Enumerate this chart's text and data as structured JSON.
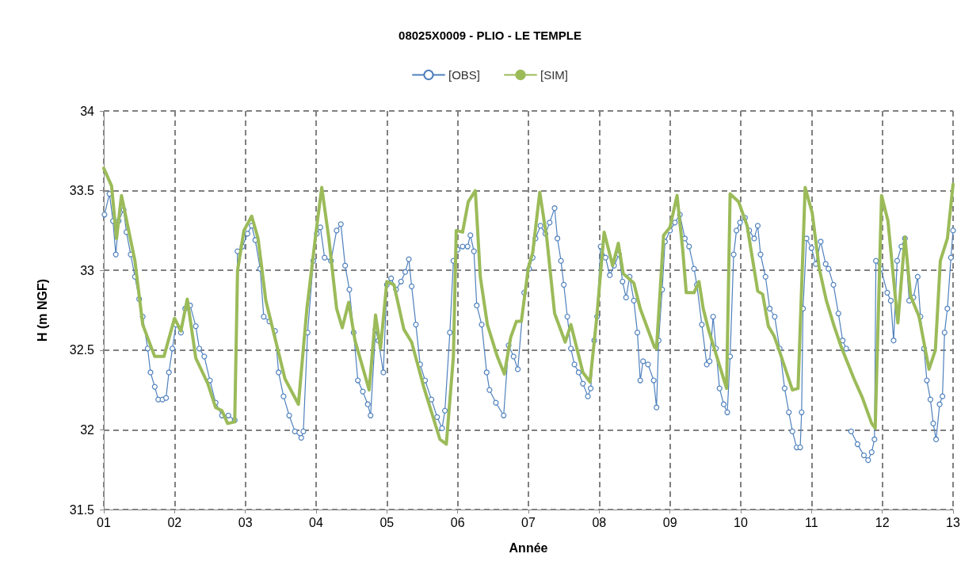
{
  "chart_data": {
    "type": "line",
    "title": "08025X0009 - PLIO - LE TEMPLE",
    "xlabel": "Année",
    "ylabel": "H (m NGF)",
    "xlim": [
      1,
      13
    ],
    "xticks": [
      {
        "value": 1,
        "label": "01"
      },
      {
        "value": 2,
        "label": "02"
      },
      {
        "value": 3,
        "label": "03"
      },
      {
        "value": 4,
        "label": "04"
      },
      {
        "value": 5,
        "label": "05"
      },
      {
        "value": 6,
        "label": "06"
      },
      {
        "value": 7,
        "label": "07"
      },
      {
        "value": 8,
        "label": "08"
      },
      {
        "value": 9,
        "label": "09"
      },
      {
        "value": 10,
        "label": "10"
      },
      {
        "value": 11,
        "label": "11"
      },
      {
        "value": 12,
        "label": "12"
      },
      {
        "value": 13,
        "label": "13"
      }
    ],
    "ylim": [
      31.5,
      34
    ],
    "yticks": [
      31.5,
      32,
      32.5,
      33,
      33.5,
      34
    ],
    "grid": true,
    "legend": "top",
    "series": [
      {
        "name": "[OBS]",
        "color": "#4f81bd",
        "marker": "circle",
        "x": [
          1.01,
          1.08,
          1.13,
          1.17,
          1.21,
          1.28,
          1.32,
          1.38,
          1.44,
          1.5,
          1.55,
          1.62,
          1.66,
          1.72,
          1.77,
          1.83,
          1.88,
          1.92,
          1.97,
          2.02,
          2.09,
          2.15,
          2.22,
          2.3,
          2.35,
          2.42,
          2.5,
          2.58,
          2.67,
          2.76,
          2.85,
          2.89,
          2.96,
          3.03,
          3.09,
          3.14,
          3.21,
          3.26,
          3.34,
          3.42,
          3.47,
          3.54,
          3.62,
          3.7,
          3.79,
          3.82,
          3.88,
          3.96,
          4.01,
          4.06,
          4.12,
          4.21,
          4.29,
          4.35,
          4.41,
          4.47,
          4.53,
          4.59,
          4.66,
          4.73,
          4.77,
          4.84,
          4.88,
          4.95,
          5.0,
          5.06,
          5.13,
          5.2,
          5.26,
          5.31,
          5.35,
          5.41,
          5.47,
          5.54,
          5.63,
          5.71,
          5.78,
          5.82,
          5.89,
          5.94,
          6.0,
          6.07,
          6.14,
          6.18,
          6.23,
          6.27,
          6.34,
          6.41,
          6.45,
          6.54,
          6.65,
          6.72,
          6.79,
          6.85,
          6.94,
          7.01,
          7.06,
          7.1,
          7.17,
          7.24,
          7.3,
          7.37,
          7.41,
          7.46,
          7.5,
          7.55,
          7.6,
          7.65,
          7.71,
          7.77,
          7.84,
          7.88,
          7.93,
          7.97,
          8.02,
          8.09,
          8.15,
          8.21,
          8.28,
          8.33,
          8.38,
          8.43,
          8.49,
          8.54,
          8.58,
          8.62,
          8.69,
          8.77,
          8.81,
          8.84,
          8.89,
          8.93,
          9.0,
          9.07,
          9.14,
          9.21,
          9.27,
          9.34,
          9.38,
          9.45,
          9.52,
          9.56,
          9.61,
          9.65,
          9.7,
          9.76,
          9.81,
          9.85,
          9.9,
          9.94,
          9.99,
          10.06,
          10.12,
          10.19,
          10.24,
          10.28,
          10.35,
          10.41,
          10.48,
          10.55,
          10.62,
          10.68,
          10.73,
          10.79,
          10.84,
          10.86,
          10.88,
          10.93,
          11.0,
          11.06,
          11.13,
          11.2,
          11.24,
          11.31,
          11.38,
          11.44,
          11.49,
          11.52,
          11.56,
          11.65,
          11.74,
          11.8,
          11.85,
          11.89,
          11.91,
          11.98,
          12.07,
          12.12,
          12.16,
          12.21,
          12.27,
          12.32,
          12.38,
          12.44,
          12.5,
          12.54,
          12.59,
          12.63,
          12.68,
          12.72,
          12.76,
          12.81,
          12.85,
          12.88,
          12.92,
          12.97,
          13.0
        ],
        "values": [
          33.35,
          33.48,
          33.31,
          33.1,
          33.31,
          33.38,
          33.24,
          33.1,
          32.96,
          32.82,
          32.71,
          32.51,
          32.36,
          32.27,
          32.19,
          32.19,
          32.2,
          32.36,
          32.51,
          32.66,
          32.61,
          32.76,
          32.78,
          32.65,
          32.51,
          32.46,
          32.31,
          32.17,
          32.09,
          32.09,
          32.06,
          33.12,
          33.15,
          33.23,
          33.28,
          33.19,
          33.01,
          32.71,
          32.68,
          32.62,
          32.36,
          32.21,
          32.09,
          31.99,
          31.95,
          31.99,
          32.61,
          33.06,
          33.23,
          33.27,
          33.08,
          33.06,
          33.25,
          33.29,
          33.03,
          32.88,
          32.61,
          32.31,
          32.24,
          32.16,
          32.09,
          32.63,
          32.56,
          32.36,
          32.91,
          32.95,
          32.88,
          32.93,
          32.99,
          33.07,
          32.9,
          32.66,
          32.41,
          32.31,
          32.19,
          32.08,
          32.01,
          32.12,
          32.61,
          33.06,
          33.13,
          33.15,
          33.15,
          33.22,
          33.12,
          32.78,
          32.66,
          32.36,
          32.25,
          32.17,
          32.09,
          32.53,
          32.46,
          32.38,
          32.86,
          33.01,
          33.08,
          33.2,
          33.28,
          33.23,
          33.3,
          33.39,
          33.2,
          33.06,
          32.91,
          32.71,
          32.51,
          32.41,
          32.36,
          32.29,
          32.21,
          32.26,
          32.56,
          32.71,
          33.15,
          33.08,
          32.97,
          33.03,
          33.1,
          32.93,
          32.83,
          32.96,
          32.81,
          32.61,
          32.31,
          32.43,
          32.41,
          32.31,
          32.14,
          32.56,
          32.88,
          33.18,
          33.25,
          33.3,
          33.35,
          33.2,
          33.15,
          33.01,
          32.91,
          32.66,
          32.41,
          32.43,
          32.71,
          32.51,
          32.26,
          32.16,
          32.11,
          32.46,
          33.1,
          33.25,
          33.3,
          33.33,
          33.25,
          33.2,
          33.28,
          33.1,
          32.96,
          32.76,
          32.71,
          32.51,
          32.26,
          32.11,
          31.99,
          31.89,
          31.89,
          32.11,
          32.76,
          33.2,
          33.14,
          33.04,
          33.18,
          33.04,
          33.01,
          32.91,
          32.73,
          32.56,
          32.51,
          null,
          31.99,
          31.91,
          31.84,
          31.81,
          31.86,
          31.94,
          33.06,
          33.01,
          32.86,
          32.81,
          32.56,
          33.06,
          33.15,
          33.2,
          32.81,
          32.83,
          32.96,
          32.71,
          32.51,
          32.31,
          32.19,
          32.04,
          31.94,
          32.16,
          32.21,
          32.61,
          32.76,
          33.08,
          33.25
        ]
      },
      {
        "name": "[SIM]",
        "color": "#9bbb59",
        "marker": "none",
        "x": [
          1.0,
          1.11,
          1.18,
          1.25,
          1.44,
          1.55,
          1.72,
          1.85,
          2.0,
          2.09,
          2.18,
          2.3,
          2.47,
          2.58,
          2.67,
          2.75,
          2.85,
          2.89,
          2.98,
          3.09,
          3.18,
          3.29,
          3.45,
          3.56,
          3.75,
          3.87,
          4.01,
          4.08,
          4.18,
          4.29,
          4.37,
          4.46,
          4.55,
          4.64,
          4.75,
          4.84,
          4.91,
          5.0,
          5.1,
          5.24,
          5.35,
          5.52,
          5.75,
          5.84,
          5.94,
          5.98,
          6.07,
          6.15,
          6.25,
          6.32,
          6.42,
          6.56,
          6.66,
          6.75,
          6.83,
          6.9,
          7.0,
          7.06,
          7.16,
          7.26,
          7.37,
          7.52,
          7.6,
          7.77,
          7.87,
          7.96,
          8.07,
          8.19,
          8.27,
          8.34,
          8.49,
          8.58,
          8.78,
          8.81,
          8.91,
          9.0,
          9.1,
          9.18,
          9.23,
          9.34,
          9.41,
          9.47,
          9.55,
          9.8,
          9.85,
          9.97,
          10.09,
          10.24,
          10.31,
          10.39,
          10.47,
          10.55,
          10.73,
          10.81,
          10.91,
          11.01,
          11.11,
          11.21,
          11.32,
          11.42,
          11.6,
          11.72,
          11.85,
          11.9,
          11.99,
          12.08,
          12.22,
          12.32,
          12.4,
          12.52,
          12.66,
          12.75,
          12.82,
          12.92,
          13.0
        ],
        "values": [
          33.64,
          33.53,
          33.2,
          33.47,
          33.06,
          32.66,
          32.46,
          32.46,
          32.7,
          32.62,
          32.82,
          32.45,
          32.29,
          32.14,
          32.12,
          32.04,
          32.05,
          33.0,
          33.25,
          33.34,
          33.2,
          32.81,
          32.52,
          32.32,
          32.16,
          32.76,
          33.28,
          33.52,
          33.2,
          32.76,
          32.64,
          32.8,
          32.56,
          32.42,
          32.25,
          32.72,
          32.51,
          32.93,
          32.91,
          32.63,
          32.55,
          32.27,
          31.94,
          31.91,
          32.46,
          33.25,
          33.24,
          33.43,
          33.5,
          32.96,
          32.66,
          32.46,
          32.35,
          32.58,
          32.68,
          32.68,
          33.02,
          33.11,
          33.49,
          33.2,
          32.73,
          32.55,
          32.66,
          32.36,
          32.3,
          32.68,
          33.24,
          33.03,
          33.17,
          32.98,
          32.92,
          32.76,
          32.52,
          32.51,
          33.22,
          33.27,
          33.47,
          33.13,
          32.86,
          32.86,
          32.93,
          32.76,
          32.62,
          32.26,
          33.48,
          33.43,
          33.28,
          32.87,
          32.85,
          32.65,
          32.59,
          32.49,
          32.25,
          32.26,
          33.52,
          33.36,
          33.01,
          32.81,
          32.65,
          32.52,
          32.32,
          32.2,
          32.04,
          32.01,
          33.47,
          33.31,
          32.67,
          33.21,
          32.84,
          32.71,
          32.38,
          32.5,
          33.06,
          33.2,
          33.54
        ]
      }
    ]
  }
}
